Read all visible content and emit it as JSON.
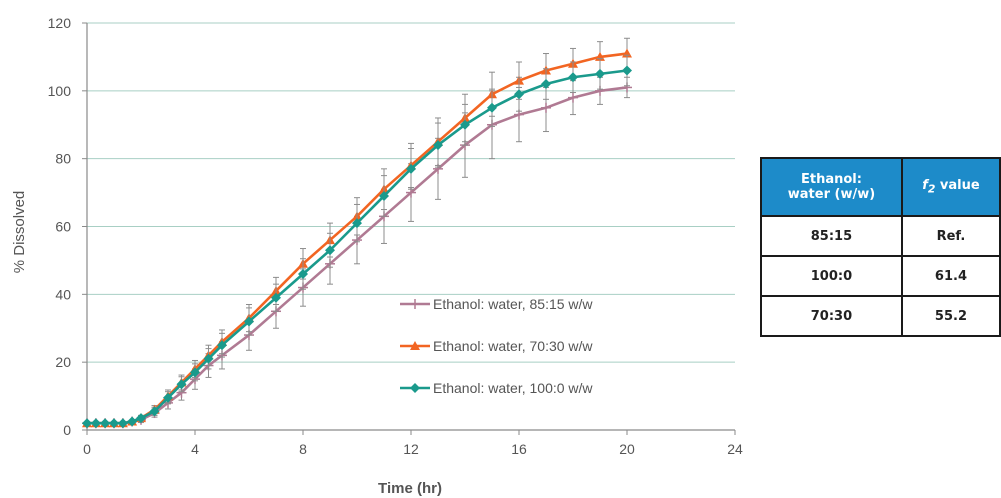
{
  "chart_data": {
    "type": "line",
    "xlabel": "Time (hr)",
    "ylabel": "% Dissolved",
    "xlim": [
      0,
      24
    ],
    "ylim": [
      0,
      120
    ],
    "x_ticks": [
      0,
      4,
      8,
      12,
      16,
      20,
      24
    ],
    "y_ticks": [
      0,
      20,
      40,
      60,
      80,
      100,
      120
    ],
    "grid": "horizontal",
    "legend_position": "center-right",
    "error_bars": true,
    "x": [
      0,
      0.33,
      0.67,
      1,
      1.33,
      1.67,
      2,
      2.5,
      3,
      3.5,
      4,
      4.5,
      5,
      6,
      7,
      8,
      9,
      10,
      11,
      12,
      13,
      14,
      15,
      16,
      17,
      18,
      19,
      20
    ],
    "series": [
      {
        "name": "Ethanol: water, 85:15 w/w",
        "color": "#b07a93",
        "marker": "tick",
        "values": [
          2,
          2,
          2,
          2,
          2,
          2.5,
          3,
          5,
          8,
          11,
          15,
          19,
          22,
          28,
          35,
          42,
          49,
          56,
          63,
          70,
          77,
          84,
          90,
          93,
          95,
          98,
          100,
          101
        ],
        "errors": [
          0.5,
          0.5,
          0.5,
          0.5,
          0.5,
          0.5,
          0.8,
          1.2,
          1.8,
          2.2,
          3,
          3.5,
          4,
          4.5,
          5,
          5.5,
          6,
          7,
          8,
          8.5,
          9,
          9.5,
          10,
          8,
          7,
          5,
          4,
          3
        ]
      },
      {
        "name": "Ethanol: water, 70:30 w/w",
        "color": "#f26522",
        "marker": "triangle",
        "values": [
          2,
          2,
          2,
          2,
          2,
          2.5,
          3.5,
          6,
          10,
          14,
          18,
          22,
          26,
          33,
          41,
          49,
          56,
          63,
          71,
          78,
          85,
          92,
          99,
          103,
          106,
          108,
          110,
          111
        ],
        "errors": [
          0.5,
          0.5,
          0.5,
          0.5,
          0.5,
          0.5,
          0.8,
          1.2,
          1.8,
          2.2,
          2.5,
          3,
          3.5,
          4,
          4,
          4.5,
          5,
          5.5,
          6,
          6.5,
          7,
          7,
          6.5,
          5.5,
          5,
          4.5,
          4.5,
          4.5
        ]
      },
      {
        "name": "Ethanol: water, 100:0 w/w",
        "color": "#1a9a8c",
        "marker": "diamond",
        "values": [
          2,
          2,
          2,
          2,
          2,
          2.5,
          3.5,
          5.5,
          9.5,
          13.5,
          17,
          21,
          25,
          32,
          39,
          46,
          53,
          61,
          69,
          77,
          84,
          90,
          95,
          99,
          102,
          104,
          105,
          106
        ],
        "errors": [
          0.5,
          0.5,
          0.5,
          0.5,
          0.5,
          0.5,
          0.8,
          1.2,
          1.8,
          2.2,
          2.5,
          3,
          3.5,
          4,
          4,
          4.5,
          5,
          5.5,
          6,
          6,
          6.5,
          6,
          5.5,
          5,
          4.5,
          4.5,
          4.5,
          4.5
        ]
      }
    ]
  },
  "table": {
    "headers": [
      "Ethanol: water (w/w)",
      "f2 value"
    ],
    "header_col1_line1": "Ethanol:",
    "header_col1_line2": "water (w/w)",
    "header_col2_symbol": "f",
    "header_col2_subscript": "2",
    "header_col2_suffix": " value",
    "rows": [
      {
        "ratio": "85:15",
        "f2": "Ref."
      },
      {
        "ratio": "100:0",
        "f2": "61.4"
      },
      {
        "ratio": "70:30",
        "f2": "55.2"
      }
    ],
    "header_color": "#1d8bc9"
  }
}
